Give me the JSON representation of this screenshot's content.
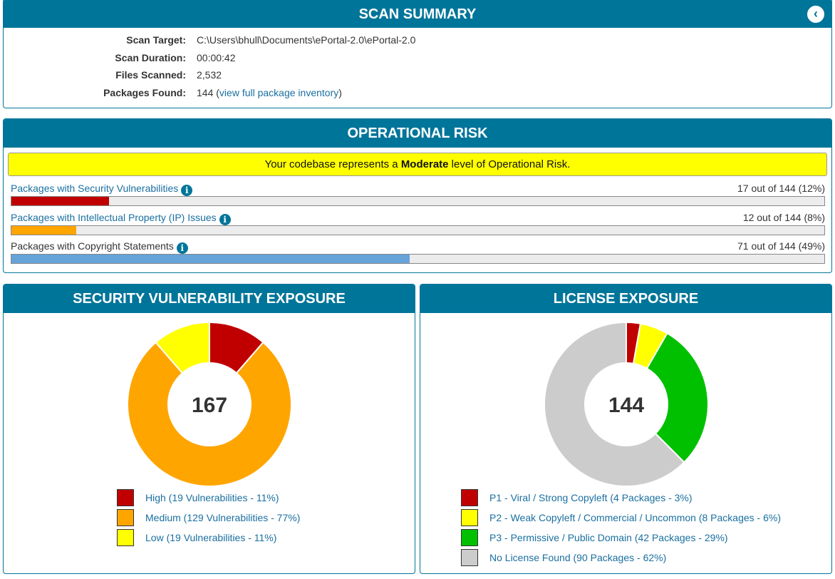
{
  "summary": {
    "title": "SCAN SUMMARY",
    "back_icon": "chevron-left-icon",
    "rows": [
      {
        "label": "Scan Target:",
        "value": "C:\\Users\\bhull\\Documents\\ePortal-2.0\\ePortal-2.0"
      },
      {
        "label": "Scan Duration:",
        "value": "00:00:42"
      },
      {
        "label": "Files Scanned:",
        "value": "2,532"
      },
      {
        "label": "Packages Found:",
        "value": "144",
        "link": "view full package inventory"
      }
    ]
  },
  "oprisk": {
    "title": "OPERATIONAL RISK",
    "banner_pre": "Your codebase represents a ",
    "banner_level": "Moderate",
    "banner_post": " level of Operational Risk.",
    "metrics": [
      {
        "label": "Packages with Security Vulnerabilities",
        "count": "17 out of 144 (12%)",
        "percent": 12,
        "color": "#c00000",
        "link": true
      },
      {
        "label": "Packages with Intellectual Property (IP) Issues",
        "count": "12 out of 144 (8%)",
        "percent": 8,
        "color": "#ffa500",
        "link": true
      },
      {
        "label": "Packages with Copyright Statements",
        "count": "71 out of 144 (49%)",
        "percent": 49,
        "color": "#66a3d9",
        "link": false
      }
    ]
  },
  "chart_data": [
    {
      "type": "pie",
      "title": "SECURITY VULNERABILITY EXPOSURE",
      "center": "167",
      "labels": [
        "High (19 Vulnerabilities - 11%)",
        "Medium (129 Vulnerabilities - 77%)",
        "Low (19 Vulnerabilities - 11%)"
      ],
      "values": [
        19,
        129,
        19
      ],
      "colors": [
        "#c00000",
        "#ffa500",
        "#ffff00"
      ]
    },
    {
      "type": "pie",
      "title": "LICENSE EXPOSURE",
      "center": "144",
      "labels": [
        "P1 - Viral / Strong Copyleft (4 Packages - 3%)",
        "P2 - Weak Copyleft / Commercial / Uncommon (8 Packages - 6%)",
        "P3 - Permissive / Public Domain (42 Packages - 29%)",
        "No License Found (90 Packages - 62%)"
      ],
      "values": [
        4,
        8,
        42,
        90
      ],
      "colors": [
        "#c00000",
        "#ffff00",
        "#00c000",
        "#cccccc"
      ]
    }
  ]
}
